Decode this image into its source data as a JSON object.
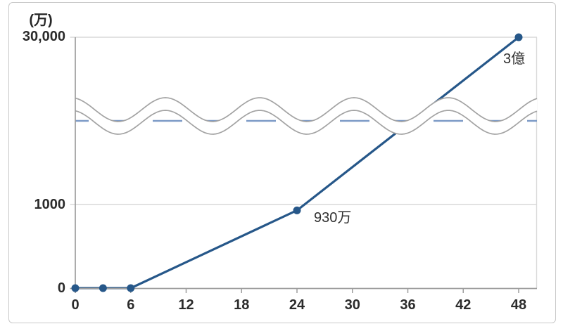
{
  "figure": {
    "axis_unit_label": "(万)",
    "background_color": "#ffffff",
    "border_color": "#c8c8c8"
  },
  "chart_data": {
    "type": "line",
    "title": "",
    "xlabel": "",
    "ylabel": "(万)",
    "legend": "none",
    "grid": "horizontal",
    "x_axis": {
      "range": [
        0,
        48
      ],
      "tick_values": [
        0,
        6,
        12,
        18,
        24,
        30,
        36,
        42,
        48
      ],
      "tick_labels": [
        "0",
        "6",
        "12",
        "18",
        "24",
        "30",
        "36",
        "42",
        "48"
      ]
    },
    "y_axis": {
      "unit": "万",
      "broken_scale": true,
      "tick_values": [
        0,
        1000,
        30000
      ],
      "tick_labels": [
        "0",
        "1000",
        "30,000"
      ]
    },
    "axis_break": {
      "present": true,
      "style": "double-wavy-band",
      "wave_color": "#a3a3a3",
      "dashed_guide_color": "#7d9bc7",
      "dashed_guide_style": "dashed"
    },
    "series": [
      {
        "name": "cumulative-total",
        "color": "#265789",
        "marker": "circle",
        "x": [
          0,
          3,
          6,
          24,
          48
        ],
        "y": [
          0,
          0,
          0,
          930,
          30000
        ],
        "point_labels": [
          null,
          null,
          null,
          "930万",
          "3億"
        ]
      }
    ]
  },
  "colors": {
    "series_line": "#265789",
    "marker_fill": "#265789",
    "dashed_reference": "#7d9bc7",
    "wave_stroke": "#a3a3a3",
    "gridline": "#d9d9d9",
    "axis_line": "#9d9d9d",
    "label_text": "#2b2b2b"
  }
}
